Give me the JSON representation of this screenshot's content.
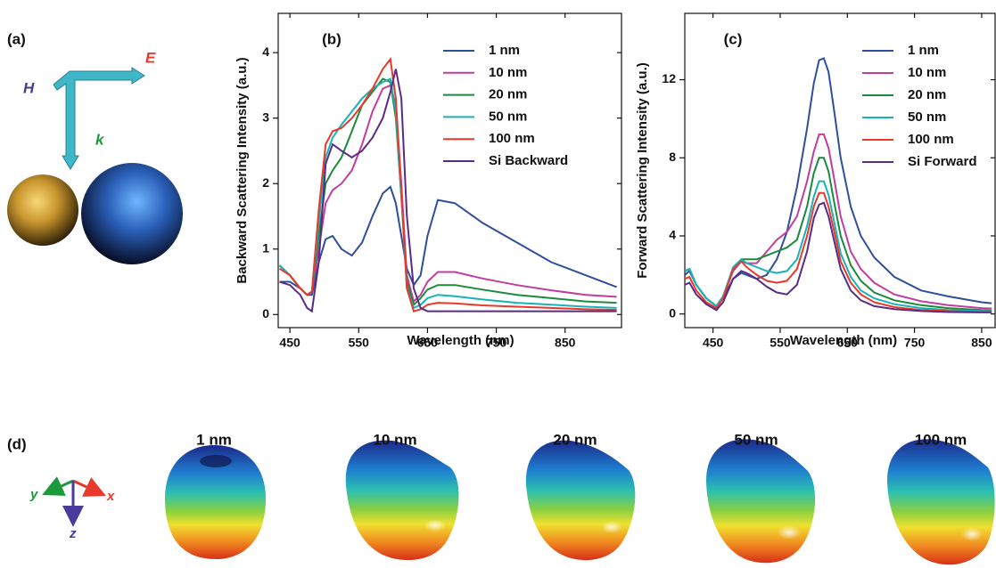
{
  "panel_a": {
    "label": "(a)",
    "H": "H",
    "E": "E",
    "k": "k"
  },
  "panel_d": {
    "label": "(d)",
    "axes": {
      "x": "x",
      "y": "y",
      "z": "z"
    },
    "titles": [
      "1 nm",
      "10 nm",
      "20 nm",
      "50 nm",
      "100 nm"
    ]
  },
  "chart_data": [
    {
      "type": "line",
      "title": "(b)",
      "x_label": "Wavelength (nm)",
      "y_label": "Backward Scattering Intensity (a.u.)",
      "xlim": [
        433,
        932
      ],
      "xticks": [
        450,
        550,
        650,
        750,
        850
      ],
      "ylim": [
        -0.2,
        4.6
      ],
      "yticks": [
        0,
        1,
        2,
        3,
        4
      ],
      "legend": "upper right",
      "x": [
        435,
        450,
        465,
        475,
        482,
        492,
        502,
        512,
        525,
        540,
        555,
        570,
        585,
        596,
        604,
        612,
        620,
        630,
        640,
        650,
        665,
        690,
        730,
        780,
        830,
        880,
        925
      ],
      "series": [
        {
          "name": "1 nm",
          "color": "#2e4f9c",
          "values": [
            0.5,
            0.5,
            0.4,
            0.3,
            0.3,
            0.8,
            1.15,
            1.2,
            1.0,
            0.9,
            1.1,
            1.5,
            1.85,
            1.95,
            1.7,
            1.2,
            0.7,
            0.45,
            0.6,
            1.2,
            1.75,
            1.7,
            1.4,
            1.1,
            0.8,
            0.6,
            0.42
          ]
        },
        {
          "name": "10 nm",
          "color": "#c43c9c",
          "values": [
            0.75,
            0.6,
            0.4,
            0.3,
            0.35,
            1.0,
            1.7,
            1.9,
            2.0,
            2.2,
            2.6,
            3.1,
            3.45,
            3.5,
            3.2,
            2.0,
            0.6,
            0.2,
            0.3,
            0.5,
            0.65,
            0.65,
            0.55,
            0.45,
            0.37,
            0.3,
            0.27
          ]
        },
        {
          "name": "20 nm",
          "color": "#1b8a3c",
          "values": [
            0.75,
            0.6,
            0.4,
            0.3,
            0.35,
            1.2,
            2.0,
            2.2,
            2.4,
            2.8,
            3.2,
            3.4,
            3.6,
            3.55,
            3.0,
            1.8,
            0.5,
            0.15,
            0.25,
            0.38,
            0.45,
            0.45,
            0.38,
            0.3,
            0.25,
            0.2,
            0.18
          ]
        },
        {
          "name": "50 nm",
          "color": "#17b3b6",
          "values": [
            0.75,
            0.6,
            0.4,
            0.3,
            0.35,
            1.4,
            2.4,
            2.7,
            2.9,
            3.1,
            3.3,
            3.45,
            3.55,
            3.6,
            3.1,
            1.8,
            0.4,
            0.1,
            0.15,
            0.25,
            0.3,
            0.28,
            0.23,
            0.18,
            0.15,
            0.12,
            0.1
          ]
        },
        {
          "name": "100 nm",
          "color": "#e8392b",
          "values": [
            0.7,
            0.6,
            0.4,
            0.3,
            0.35,
            1.6,
            2.6,
            2.8,
            2.85,
            3.0,
            3.2,
            3.45,
            3.75,
            3.9,
            3.3,
            1.9,
            0.4,
            0.05,
            0.08,
            0.15,
            0.18,
            0.17,
            0.14,
            0.12,
            0.1,
            0.08,
            0.07
          ]
        },
        {
          "name": "Si Backward",
          "color": "#5a2a88",
          "values": [
            0.5,
            0.45,
            0.3,
            0.1,
            0.05,
            0.8,
            2.3,
            2.6,
            2.5,
            2.4,
            2.5,
            2.7,
            3.0,
            3.4,
            3.75,
            3.3,
            1.5,
            0.4,
            0.1,
            0.05,
            0.05,
            0.05,
            0.05,
            0.05,
            0.05,
            0.05,
            0.05
          ]
        }
      ]
    },
    {
      "type": "line",
      "title": "(c)",
      "x_label": "Wavelength (nm)",
      "y_label": "Forward Scattering Intensity (a.u.)",
      "xlim": [
        408,
        870
      ],
      "xticks": [
        450,
        550,
        650,
        750,
        850
      ],
      "ylim": [
        -0.7,
        15.4
      ],
      "yticks": [
        0,
        4,
        8,
        12
      ],
      "legend": "upper right",
      "x": [
        408,
        415,
        425,
        440,
        455,
        465,
        480,
        492,
        500,
        515,
        530,
        545,
        560,
        575,
        590,
        600,
        608,
        615,
        622,
        630,
        640,
        655,
        670,
        690,
        720,
        760,
        800,
        850,
        865
      ],
      "series": [
        {
          "name": "1 nm",
          "color": "#2e4f9c",
          "values": [
            2.0,
            2.2,
            1.5,
            0.8,
            0.4,
            0.8,
            1.8,
            2.1,
            2.0,
            1.8,
            2.0,
            2.8,
            4.2,
            6.5,
            9.5,
            11.8,
            13.0,
            13.1,
            12.4,
            10.5,
            8.0,
            5.5,
            4.0,
            2.9,
            1.9,
            1.2,
            0.9,
            0.6,
            0.55
          ]
        },
        {
          "name": "10 nm",
          "color": "#c43c9c",
          "values": [
            2.2,
            2.3,
            1.5,
            0.8,
            0.4,
            0.9,
            2.2,
            2.7,
            2.6,
            2.6,
            3.2,
            3.8,
            4.2,
            5.0,
            6.8,
            8.3,
            9.2,
            9.2,
            8.5,
            7.0,
            5.0,
            3.2,
            2.3,
            1.6,
            1.0,
            0.65,
            0.45,
            0.3,
            0.28
          ]
        },
        {
          "name": "20 nm",
          "color": "#1b8a3c",
          "values": [
            2.2,
            2.3,
            1.5,
            0.8,
            0.4,
            0.9,
            2.3,
            2.8,
            2.8,
            2.8,
            3.0,
            3.2,
            3.4,
            3.8,
            5.5,
            7.2,
            8.0,
            8.0,
            7.3,
            5.8,
            4.0,
            2.5,
            1.7,
            1.1,
            0.7,
            0.45,
            0.3,
            0.2,
            0.18
          ]
        },
        {
          "name": "50 nm",
          "color": "#17b3b6",
          "values": [
            2.2,
            2.3,
            1.5,
            0.8,
            0.4,
            0.9,
            2.4,
            2.8,
            2.6,
            2.4,
            2.2,
            2.1,
            2.2,
            2.8,
            4.5,
            6.0,
            6.8,
            6.8,
            6.1,
            4.8,
            3.1,
            1.9,
            1.2,
            0.8,
            0.5,
            0.3,
            0.2,
            0.15,
            0.13
          ]
        },
        {
          "name": "100 nm",
          "color": "#e8392b",
          "values": [
            1.8,
            1.9,
            1.2,
            0.6,
            0.3,
            0.8,
            2.3,
            2.7,
            2.4,
            2.0,
            1.7,
            1.6,
            1.7,
            2.3,
            4.0,
            5.5,
            6.2,
            6.2,
            5.5,
            4.3,
            2.7,
            1.6,
            1.0,
            0.6,
            0.35,
            0.2,
            0.15,
            0.1,
            0.1
          ]
        },
        {
          "name": "Si Forward",
          "color": "#5a2a88",
          "values": [
            1.5,
            1.6,
            1.0,
            0.5,
            0.2,
            0.6,
            1.8,
            2.2,
            2.1,
            1.8,
            1.4,
            1.1,
            1.0,
            1.5,
            3.2,
            4.9,
            5.6,
            5.7,
            5.0,
            3.8,
            2.3,
            1.2,
            0.7,
            0.4,
            0.25,
            0.15,
            0.1,
            0.08,
            0.08
          ]
        }
      ]
    }
  ]
}
